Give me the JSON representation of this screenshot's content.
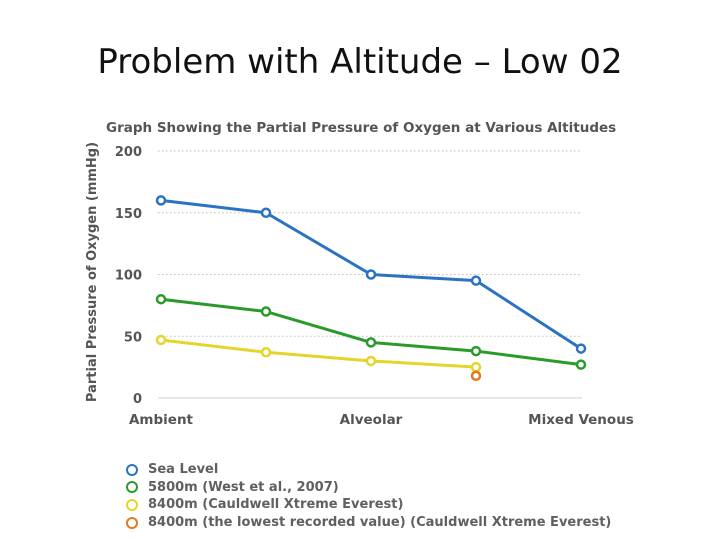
{
  "slide": {
    "title": "Problem with Altitude – Low 02"
  },
  "chart_data": {
    "type": "line",
    "title": "Graph Showing the Partial Pressure of Oxygen at Various Altitudes",
    "xlabel": "",
    "ylabel": "Partial Pressure of Oxygen (mmHg)",
    "ylim": [
      0,
      200
    ],
    "yticks": [
      0,
      50,
      100,
      150,
      200
    ],
    "categories": [
      "Ambient",
      "",
      "Alveolar",
      "",
      "Mixed Venous"
    ],
    "category_labels": [
      {
        "label": "Ambient",
        "x": 0
      },
      {
        "label": "Alveolar",
        "x": 2
      },
      {
        "label": "Mixed Venous",
        "x": 4
      }
    ],
    "grid": true,
    "legend_position": "bottom",
    "series": [
      {
        "name": "Sea Level",
        "color": "#2b73c2",
        "x": [
          0,
          1,
          2,
          3,
          4
        ],
        "values": [
          160,
          150,
          100,
          95,
          40
        ]
      },
      {
        "name": "5800m (West et al., 2007)",
        "color": "#2a9a2a",
        "x": [
          0,
          1,
          2,
          3,
          4
        ],
        "values": [
          80,
          70,
          45,
          38,
          27
        ]
      },
      {
        "name": "8400m (Cauldwell Xtreme Everest)",
        "color": "#e6d42a",
        "x": [
          0,
          1,
          2,
          3
        ],
        "values": [
          47,
          37,
          30,
          25
        ]
      },
      {
        "name": "8400m (the lowest recorded value) (Cauldwell Xtreme Everest)",
        "color": "#e07a25",
        "x": [
          3
        ],
        "values": [
          18
        ]
      }
    ]
  }
}
